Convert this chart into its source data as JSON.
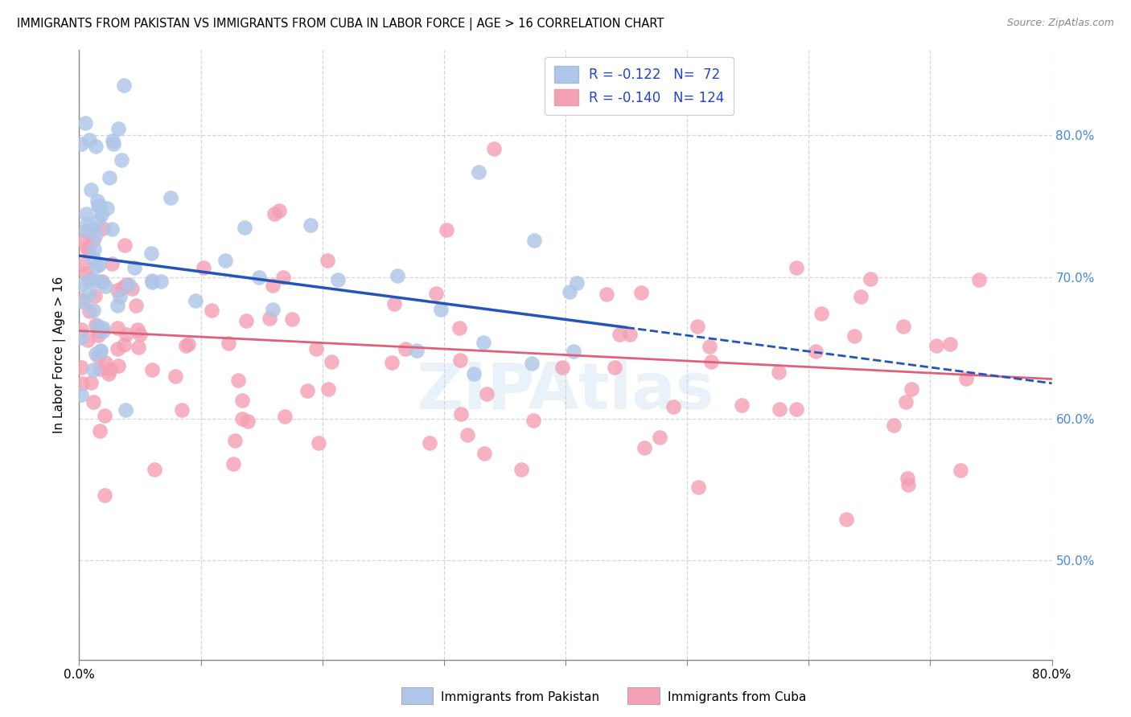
{
  "title": "IMMIGRANTS FROM PAKISTAN VS IMMIGRANTS FROM CUBA IN LABOR FORCE | AGE > 16 CORRELATION CHART",
  "source": "Source: ZipAtlas.com",
  "ylabel": "In Labor Force | Age > 16",
  "pakistan_R": -0.122,
  "pakistan_N": 72,
  "cuba_R": -0.14,
  "cuba_N": 124,
  "pakistan_color": "#aec6e8",
  "pakistan_line_color": "#2255bb",
  "cuba_color": "#f4a0b5",
  "cuba_line_color": "#e0607a",
  "legend_text_color": "#2244cc",
  "background_color": "#ffffff",
  "grid_color": "#cccccc",
  "xlim": [
    0,
    80
  ],
  "ylim": [
    43,
    86
  ],
  "right_yticks": [
    50,
    60,
    70,
    80
  ],
  "right_yticklabels": [
    "50.0%",
    "60.0%",
    "70.0%",
    "80.0%"
  ],
  "xtick_vals": [
    0,
    10,
    20,
    30,
    40,
    50,
    60,
    70,
    80
  ],
  "xtick_labels": [
    "0.0%",
    "",
    "",
    "",
    "",
    "",
    "",
    "",
    "80.0%"
  ],
  "pak_trend_x0": 0,
  "pak_trend_y0": 71.5,
  "pak_trend_x1": 80,
  "pak_trend_y1": 62.5,
  "pak_solid_end_x": 45,
  "cuba_trend_x0": 0,
  "cuba_trend_y0": 66.2,
  "cuba_trend_x1": 80,
  "cuba_trend_y1": 62.8,
  "bottom_legend_pak_label": "Immigrants from Pakistan",
  "bottom_legend_cuba_label": "Immigrants from Cuba"
}
